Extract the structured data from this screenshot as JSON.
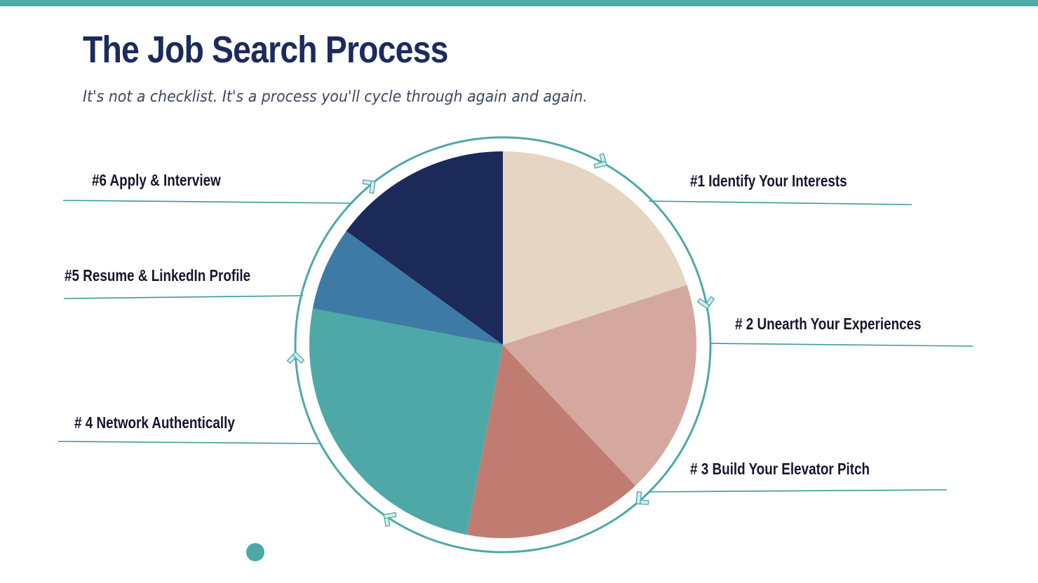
{
  "slide": {
    "title": "The Job Search Process",
    "subtitle": "It's not a checklist. It's a process you'll cycle through again and again.",
    "accent_color": "#4ea8a8",
    "title_color": "#1c2a5e"
  },
  "labels": [
    {
      "id": "step-1",
      "text": "#1 Identify Your Interests"
    },
    {
      "id": "step-2",
      "text": "# 2 Unearth Your Experiences"
    },
    {
      "id": "step-3",
      "text": "# 3 Build Your Elevator Pitch"
    },
    {
      "id": "step-4",
      "text": "# 4 Network Authentically"
    },
    {
      "id": "step-5",
      "text": "#5 Resume & LinkedIn Profile"
    },
    {
      "id": "step-6",
      "text": "#6 Apply & Interview"
    }
  ],
  "chart_data": {
    "type": "pie",
    "title": "The Job Search Process",
    "start_angle": "12 o'clock, clockwise",
    "categories": [
      "#1 Identify Your Interests",
      "# 2 Unearth Your Experiences",
      "# 3 Build Your Elevator Pitch",
      "# 4 Network Authentically",
      "#5 Resume & LinkedIn Profile",
      "#6 Apply & Interview"
    ],
    "values": [
      20,
      18,
      15,
      25,
      7,
      15
    ],
    "colors": [
      "#e6d5c3",
      "#d4a89f",
      "#c07c70",
      "#4ea8a8",
      "#3d7ba6",
      "#1c2a5a"
    ],
    "legend": "callout labels with leader lines",
    "decoration": "circular teal ring with arrow chevrons indicating clockwise cycle"
  }
}
